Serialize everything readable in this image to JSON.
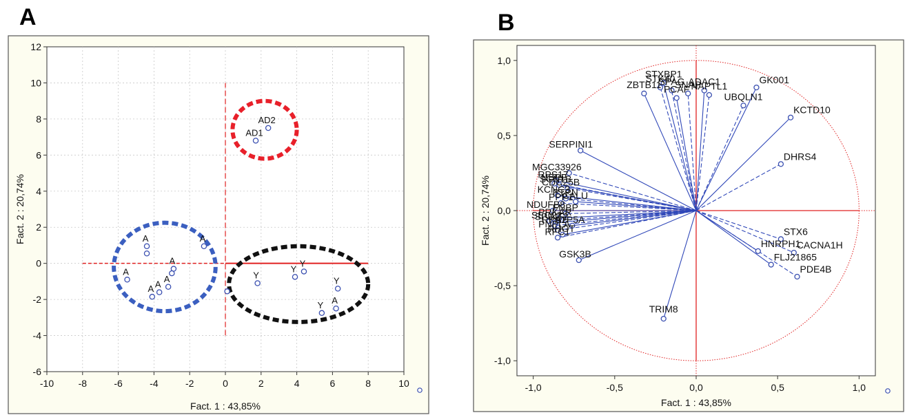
{
  "panels": {
    "a": {
      "letter": "A"
    },
    "b": {
      "letter": "B"
    }
  },
  "colors": {
    "points": "#3a4fb0",
    "axis_red": "#e02020",
    "frame_bg": "#fdfdf0",
    "circle_red": "#e8202a",
    "circle_blue": "#3b5fc0",
    "circle_black": "#111111",
    "vector_blue": "#2f47b8"
  },
  "chart_data": [
    {
      "type": "scatter",
      "xlabel": "Fact. 1 : 43,85%",
      "ylabel": "Fact. 2 : 20,74%",
      "xlim": [
        -10,
        10
      ],
      "ylim": [
        -6,
        12
      ],
      "xticks": [
        "-10",
        "-8",
        "-6",
        "-4",
        "-2",
        "0",
        "2",
        "4",
        "6",
        "8",
        "10"
      ],
      "yticks": [
        "-6",
        "-4",
        "-2",
        "0",
        "2",
        "4",
        "6",
        "8",
        "10",
        "12"
      ],
      "grid": true,
      "points": [
        {
          "label": "AD2",
          "x": 2.4,
          "y": 7.5
        },
        {
          "label": "AD1",
          "x": 1.7,
          "y": 6.8
        },
        {
          "label": "A",
          "x": -4.4,
          "y": 0.95
        },
        {
          "label": "",
          "x": -4.4,
          "y": 0.55
        },
        {
          "label": "A",
          "x": -1.2,
          "y": 0.95
        },
        {
          "label": "A",
          "x": -2.9,
          "y": -0.3
        },
        {
          "label": "",
          "x": -3.0,
          "y": -0.55
        },
        {
          "label": "A",
          "x": -5.5,
          "y": -0.9
        },
        {
          "label": "A",
          "x": -3.2,
          "y": -1.3
        },
        {
          "label": "A",
          "x": -3.7,
          "y": -1.6
        },
        {
          "label": "A",
          "x": -4.1,
          "y": -1.85
        },
        {
          "label": "Y",
          "x": 1.8,
          "y": -1.1
        },
        {
          "label": "Y",
          "x": 3.9,
          "y": -0.75
        },
        {
          "label": "Y",
          "x": 4.4,
          "y": -0.45
        },
        {
          "label": "Y",
          "x": 6.3,
          "y": -1.4
        },
        {
          "label": "Y",
          "x": 5.4,
          "y": -2.75
        },
        {
          "label": "A",
          "x": 6.2,
          "y": -2.5
        },
        {
          "label": "",
          "x": 0.1,
          "y": -1.55
        }
      ],
      "groups": [
        {
          "color": "red",
          "cx": 2.2,
          "cy": 7.4,
          "rx": 1.8,
          "ry": 1.6
        },
        {
          "color": "blue",
          "cx": -3.4,
          "cy": -0.2,
          "rx": 2.85,
          "ry": 2.45
        },
        {
          "color": "black",
          "cx": 4.1,
          "cy": -1.15,
          "rx": 3.9,
          "ry": 2.1
        }
      ]
    },
    {
      "type": "scatter",
      "xlabel": "Fact. 1  : 43,85%",
      "ylabel": "Fact. 2 : 20,74%",
      "xlim": [
        -1.1,
        1.1
      ],
      "ylim": [
        -1.1,
        1.1
      ],
      "xticks": [
        "-1,0",
        "-0,5",
        "0,0",
        "0,5",
        "1,0"
      ],
      "yticks": [
        "-1,0",
        "-0,5",
        "0,0",
        "0,5",
        "1,0"
      ],
      "unit_circle": true,
      "points": [
        {
          "label": "STXBP1",
          "x": -0.2,
          "y": 0.85
        },
        {
          "label": "STK40",
          "x": -0.22,
          "y": 0.82
        },
        {
          "label": "ZBTB11",
          "x": -0.32,
          "y": 0.78
        },
        {
          "label": "SPAG",
          "x": -0.15,
          "y": 0.8
        },
        {
          "label": "PCAF",
          "x": -0.12,
          "y": 0.75
        },
        {
          "label": "SNAP",
          "x": -0.05,
          "y": 0.78
        },
        {
          "label": "ADAC1",
          "x": 0.05,
          "y": 0.8
        },
        {
          "label": "NAPTL1",
          "x": 0.08,
          "y": 0.77
        },
        {
          "label": "GK001",
          "x": 0.37,
          "y": 0.82
        },
        {
          "label": "UBQLN1",
          "x": 0.29,
          "y": 0.7
        },
        {
          "label": "KCTD10",
          "x": 0.58,
          "y": 0.62
        },
        {
          "label": "DHRS4",
          "x": 0.52,
          "y": 0.31
        },
        {
          "label": "SERPINI1",
          "x": -0.71,
          "y": 0.4
        },
        {
          "label": "MGC33926",
          "x": -0.78,
          "y": 0.25
        },
        {
          "label": "RPS17",
          "x": -0.86,
          "y": 0.2
        },
        {
          "label": "NBPF",
          "x": -0.87,
          "y": 0.18
        },
        {
          "label": "SCN1B",
          "x": -0.84,
          "y": 0.17
        },
        {
          "label": "CDC25B",
          "x": -0.79,
          "y": 0.15
        },
        {
          "label": "KCNC3",
          "x": -0.85,
          "y": 0.1
        },
        {
          "label": "PTPN",
          "x": -0.8,
          "y": 0.08
        },
        {
          "label": "CALU",
          "x": -0.74,
          "y": 0.06
        },
        {
          "label": "PPP1",
          "x": -0.83,
          "y": 0.05
        },
        {
          "label": "NDUFB8",
          "x": -0.88,
          "y": 0.0
        },
        {
          "label": "FNBP",
          "x": -0.8,
          "y": -0.02
        },
        {
          "label": "PRKAR",
          "x": -0.84,
          "y": -0.05
        },
        {
          "label": "SEC22",
          "x": -0.9,
          "y": -0.07
        },
        {
          "label": "SPINT2",
          "x": -0.86,
          "y": -0.08
        },
        {
          "label": "RPS2",
          "x": -0.87,
          "y": -0.1
        },
        {
          "label": "ATP5A",
          "x": -0.76,
          "y": -0.1
        },
        {
          "label": "PNPLA",
          "x": -0.85,
          "y": -0.13
        },
        {
          "label": "RHOT",
          "x": -0.82,
          "y": -0.16
        },
        {
          "label": "RFC1",
          "x": -0.85,
          "y": -0.18
        },
        {
          "label": "GSK3B",
          "x": -0.72,
          "y": -0.33
        },
        {
          "label": "STX6",
          "x": 0.52,
          "y": -0.19
        },
        {
          "label": "HNRPH1",
          "x": 0.38,
          "y": -0.27
        },
        {
          "label": "CACNA1H",
          "x": 0.6,
          "y": -0.28
        },
        {
          "label": "FLJ21865",
          "x": 0.46,
          "y": -0.36
        },
        {
          "label": "PDE4B",
          "x": 0.62,
          "y": -0.44
        },
        {
          "label": "TRIM8",
          "x": -0.2,
          "y": -0.72
        }
      ]
    }
  ]
}
